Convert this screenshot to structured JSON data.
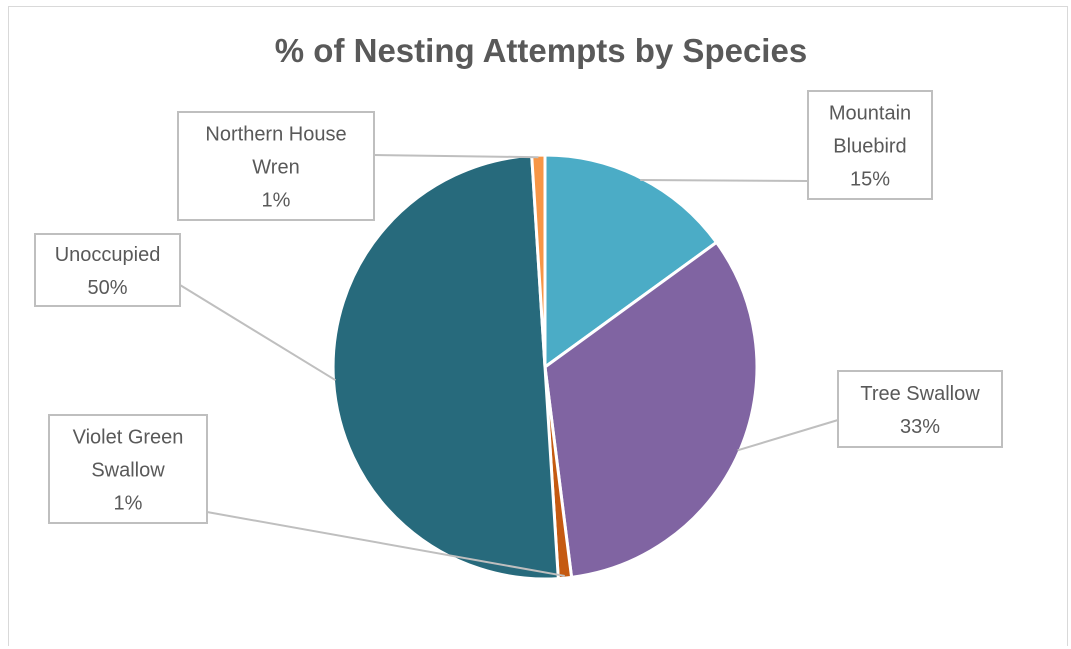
{
  "chart_data": {
    "type": "pie",
    "title": "% of Nesting Attempts by Species",
    "slices": [
      {
        "label_lines": [
          "Mountain",
          "Bluebird"
        ],
        "percent_label": "15%",
        "value": 15,
        "color": "#4bacc6"
      },
      {
        "label_lines": [
          "Tree Swallow"
        ],
        "percent_label": "33%",
        "value": 33,
        "color": "#8064a2"
      },
      {
        "label_lines": [
          "Violet Green",
          "Swallow"
        ],
        "percent_label": "1%",
        "value": 1,
        "color": "#c55a11"
      },
      {
        "label_lines": [
          "Unoccupied"
        ],
        "percent_label": "50%",
        "value": 50,
        "color": "#276a7c"
      },
      {
        "label_lines": [
          "Northern House",
          "Wren"
        ],
        "percent_label": "1%",
        "value": 1,
        "color": "#f79646"
      }
    ]
  }
}
